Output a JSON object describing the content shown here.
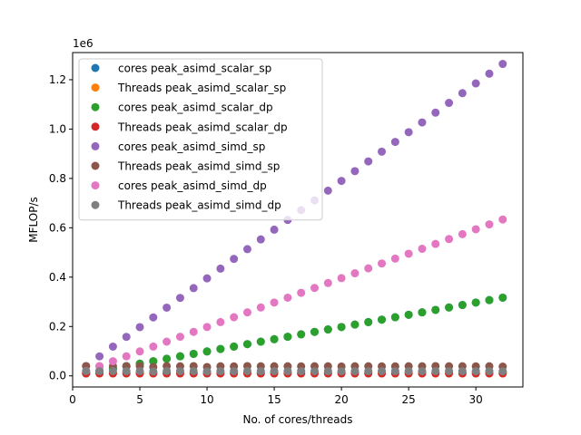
{
  "chart_data": {
    "type": "scatter",
    "title": "",
    "xlabel": "No. of cores/threads",
    "ylabel": "MFLOP/s",
    "y_offset_label": "1e6",
    "xlim": [
      0,
      33.5
    ],
    "ylim": [
      -45000,
      1310000
    ],
    "xticks": [
      0,
      5,
      10,
      15,
      20,
      25,
      30
    ],
    "yticks": [
      0.0,
      0.2,
      0.4,
      0.6,
      0.8,
      1.0,
      1.2
    ],
    "ytick_scale": 1000000,
    "grid": false,
    "legend_position": "upper-left",
    "x": [
      1,
      2,
      3,
      4,
      5,
      6,
      7,
      8,
      9,
      10,
      11,
      12,
      13,
      14,
      15,
      16,
      17,
      18,
      19,
      20,
      21,
      22,
      23,
      24,
      25,
      26,
      27,
      28,
      29,
      30,
      31,
      32
    ],
    "series": [
      {
        "name": "cores peak_asimd_scalar_sp",
        "color": "#1f77b4",
        "values": [
          9900,
          19800,
          29700,
          39600,
          49500,
          59400,
          69300,
          79200,
          89100,
          99000,
          108900,
          118800,
          128700,
          138600,
          148500,
          158400,
          168300,
          178200,
          188100,
          198000,
          207900,
          217800,
          227700,
          237600,
          247500,
          257400,
          267300,
          277200,
          287100,
          297000,
          306900,
          316800
        ]
      },
      {
        "name": "Threads peak_asimd_scalar_sp",
        "color": "#ff7f0e",
        "values": [
          9900,
          9900,
          9900,
          9900,
          9900,
          9900,
          9900,
          9900,
          9900,
          9900,
          9900,
          9900,
          9900,
          9900,
          9900,
          9900,
          9900,
          9900,
          9900,
          9900,
          9900,
          9900,
          9900,
          9900,
          9900,
          9900,
          9900,
          9900,
          9900,
          9900,
          9900,
          9900
        ]
      },
      {
        "name": "cores peak_asimd_scalar_dp",
        "color": "#2ca02c",
        "values": [
          9900,
          19800,
          29700,
          39600,
          49500,
          59400,
          69300,
          79200,
          89100,
          99000,
          108900,
          118800,
          128700,
          138600,
          148500,
          158400,
          168300,
          178200,
          188100,
          198000,
          207900,
          217800,
          227700,
          237600,
          247500,
          257400,
          267300,
          277200,
          287100,
          297000,
          306900,
          316800
        ]
      },
      {
        "name": "Threads peak_asimd_scalar_dp",
        "color": "#d62728",
        "values": [
          9900,
          9900,
          9900,
          9900,
          9900,
          9900,
          9900,
          9900,
          9900,
          9900,
          9900,
          9900,
          9900,
          9900,
          9900,
          9900,
          9900,
          9900,
          9900,
          9900,
          9900,
          9900,
          9900,
          9900,
          9900,
          9900,
          9900,
          9900,
          9900,
          9900,
          9900,
          9900
        ]
      },
      {
        "name": "cores peak_asimd_simd_sp",
        "color": "#9467bd",
        "values": [
          39500,
          79000,
          118500,
          158000,
          197500,
          237000,
          276500,
          316000,
          355500,
          395000,
          434500,
          474000,
          513500,
          553000,
          592500,
          632000,
          671500,
          711000,
          750500,
          790000,
          829500,
          869000,
          908500,
          948000,
          987500,
          1027000,
          1066500,
          1106000,
          1145500,
          1185000,
          1224500,
          1264000
        ]
      },
      {
        "name": "Threads peak_asimd_simd_sp",
        "color": "#8c564b",
        "values": [
          39500,
          39000,
          39500,
          39000,
          39500,
          36000,
          39500,
          39000,
          39500,
          36000,
          39000,
          38500,
          39500,
          39000,
          39000,
          39000,
          38500,
          39000,
          39000,
          38000,
          39000,
          39000,
          38500,
          38500,
          39000,
          39000,
          39500,
          39000,
          39000,
          38500,
          39000,
          37500
        ]
      },
      {
        "name": "cores peak_asimd_simd_dp",
        "color": "#e377c2",
        "values": [
          19800,
          39600,
          59400,
          79200,
          99000,
          118800,
          138600,
          158400,
          178200,
          198000,
          217800,
          237600,
          257400,
          277200,
          297000,
          316800,
          336600,
          356400,
          376200,
          396000,
          415800,
          435600,
          455400,
          475200,
          495000,
          514800,
          534600,
          554400,
          574200,
          594000,
          613800,
          633600
        ]
      },
      {
        "name": "Threads peak_asimd_simd_dp",
        "color": "#7f7f7f",
        "values": [
          19500,
          19000,
          19500,
          19000,
          19500,
          18000,
          19500,
          19000,
          19500,
          18000,
          19000,
          19000,
          19500,
          19000,
          19000,
          19000,
          19000,
          19000,
          19000,
          18500,
          19000,
          19000,
          19000,
          19000,
          19000,
          19000,
          19500,
          19000,
          19000,
          19000,
          19000,
          18500
        ]
      }
    ]
  }
}
